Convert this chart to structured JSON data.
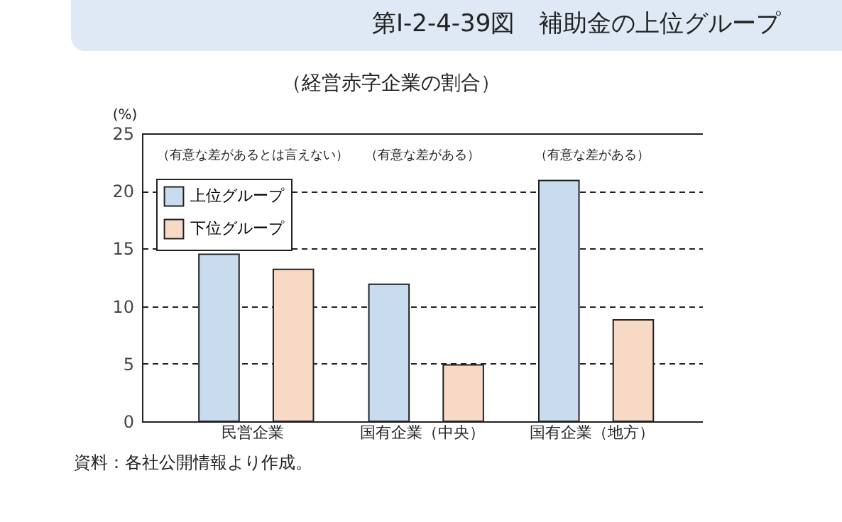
{
  "chart_data": {
    "type": "bar",
    "title": "第Ⅰ-2-4-39図　補助金の上位グループ",
    "subtitle": "（経営赤字企業の割合）",
    "ylabel": "(%)",
    "categories": [
      "民営企業",
      "国有企業（中央）",
      "国有企業（地方）"
    ],
    "series": [
      {
        "name": "上位グループ",
        "color": "#c9dcef",
        "values": [
          14.5,
          11.9,
          20.9
        ]
      },
      {
        "name": "下位グループ",
        "color": "#f7d9c6",
        "values": [
          13.2,
          4.9,
          8.8
        ]
      }
    ],
    "ylim": [
      0,
      25
    ],
    "yticks": [
      0,
      5,
      10,
      15,
      20,
      25
    ],
    "grid": "y",
    "legend": "top left",
    "annotations": [
      "（有意な差があるとは言えない）",
      "（有意な差がある）",
      "（有意な差がある）",
      "資料：各社公開情報より作成。"
    ]
  }
}
